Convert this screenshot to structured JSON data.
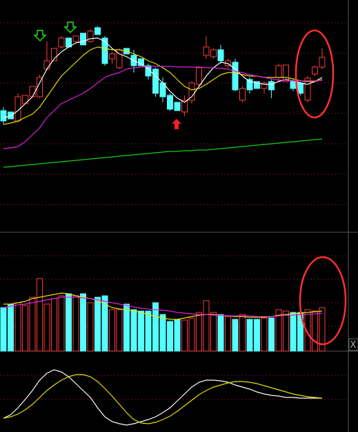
{
  "chart_data": [
    {
      "type": "candlestick",
      "ylim": [
        0,
        335
      ],
      "up_color": "#ff3b3b",
      "down_color": "#54ffff",
      "open": [
        175,
        173,
        160,
        185,
        195,
        195,
        235,
        247,
        267,
        280,
        275,
        287,
        275,
        295,
        280,
        250,
        237,
        265,
        255,
        250,
        240,
        235,
        215,
        197,
        187,
        173,
        190,
        213,
        255,
        253,
        263,
        240,
        245,
        190,
        220,
        217,
        207,
        217,
        223,
        217,
        217,
        215,
        190,
        228,
        238
      ],
      "high": [
        180,
        173,
        200,
        197,
        210,
        227,
        275,
        265,
        283,
        280,
        283,
        287,
        293,
        297,
        283,
        260,
        265,
        265,
        263,
        250,
        243,
        237,
        223,
        200,
        187,
        197,
        217,
        239,
        283,
        265,
        270,
        250,
        250,
        210,
        223,
        217,
        217,
        220,
        243,
        241,
        220,
        217,
        225,
        240,
        265
      ],
      "low": [
        155,
        163,
        157,
        185,
        195,
        193,
        233,
        247,
        265,
        267,
        275,
        270,
        273,
        285,
        240,
        243,
        235,
        257,
        230,
        240,
        220,
        195,
        187,
        175,
        175,
        167,
        185,
        210,
        250,
        250,
        243,
        237,
        203,
        187,
        200,
        207,
        200,
        193,
        217,
        217,
        203,
        197,
        187,
        225,
        235
      ],
      "close": [
        160,
        163,
        195,
        197,
        210,
        223,
        247,
        265,
        280,
        267,
        283,
        270,
        290,
        285,
        243,
        257,
        263,
        257,
        240,
        240,
        225,
        200,
        195,
        177,
        175,
        190,
        215,
        237,
        267,
        263,
        247,
        247,
        205,
        207,
        205,
        207,
        215,
        205,
        240,
        241,
        207,
        200,
        222,
        238,
        252
      ],
      "series": [
        {
          "color": "#ffffff",
          "values": [
            165,
            167,
            175,
            185,
            195,
            215,
            235,
            250,
            260,
            267,
            273,
            275,
            279,
            280,
            275,
            265,
            257,
            253,
            247,
            243,
            235,
            225,
            215,
            203,
            193,
            187,
            195,
            210,
            225,
            237,
            245,
            243,
            235,
            225,
            217,
            215,
            213,
            213,
            217,
            220,
            218,
            215,
            213,
            217,
            223
          ]
        },
        {
          "color": "#e8e000",
          "values": [
            155,
            157,
            160,
            165,
            170,
            180,
            195,
            210,
            225,
            235,
            245,
            255,
            263,
            267,
            265,
            263,
            263,
            261,
            257,
            253,
            247,
            243,
            237,
            230,
            220,
            210,
            205,
            207,
            213,
            220,
            227,
            230,
            230,
            227,
            225,
            225,
            223,
            223,
            223,
            223,
            221,
            218,
            217,
            217,
            220
          ]
        },
        {
          "color": "#e020e0",
          "values": [
            120,
            121,
            123,
            130,
            140,
            150,
            165,
            175,
            185,
            190,
            195,
            200,
            207,
            215,
            223,
            227,
            230,
            235,
            237,
            238,
            239,
            239,
            239,
            239,
            238,
            238,
            238,
            238,
            237,
            237,
            236,
            235,
            232,
            230,
            227,
            225,
            223,
            221,
            219,
            219,
            218,
            218,
            218,
            218,
            219
          ]
        },
        {
          "color": "#10d010",
          "values": [
            93,
            94,
            95,
            96,
            97,
            98,
            99,
            100,
            101,
            102,
            103,
            104,
            105,
            106,
            107,
            108,
            109,
            110,
            111,
            112,
            113,
            114,
            115,
            116,
            116,
            117,
            117,
            118,
            118,
            119,
            120,
            121,
            122,
            123,
            124,
            125,
            126,
            127,
            128,
            129,
            130,
            131,
            132,
            133,
            134
          ]
        }
      ]
    },
    {
      "type": "bar",
      "ylim": [
        0,
        168
      ],
      "values": [
        63,
        68,
        70,
        66,
        78,
        105,
        68,
        76,
        80,
        83,
        80,
        83,
        70,
        78,
        80,
        60,
        60,
        68,
        60,
        58,
        58,
        70,
        53,
        43,
        46,
        45,
        48,
        56,
        73,
        56,
        53,
        50,
        46,
        53,
        46,
        46,
        48,
        48,
        60,
        58,
        56,
        56,
        60,
        58,
        63
      ],
      "colors": [
        "#54ffff",
        "#54ffff",
        "#ff3b3b",
        "#ff3b3b",
        "#ff3b3b",
        "#ff3b3b",
        "#ff3b3b",
        "#ff3b3b",
        "#ff3b3b",
        "#54ffff",
        "#ff3b3b",
        "#54ffff",
        "#ff3b3b",
        "#54ffff",
        "#54ffff",
        "#ff3b3b",
        "#ff3b3b",
        "#54ffff",
        "#54ffff",
        "#54ffff",
        "#54ffff",
        "#54ffff",
        "#54ffff",
        "#54ffff",
        "#54ffff",
        "#ff3b3b",
        "#ff3b3b",
        "#ff3b3b",
        "#ff3b3b",
        "#ff3b3b",
        "#54ffff",
        "#ff3b3b",
        "#54ffff",
        "#ff3b3b",
        "#54ffff",
        "#54ffff",
        "#ff3b3b",
        "#54ffff",
        "#ff3b3b",
        "#ff3b3b",
        "#54ffff",
        "#54ffff",
        "#ff3b3b",
        "#ff3b3b",
        "#ff3b3b"
      ],
      "series": [
        {
          "color": "#e8e000",
          "values": [
            68,
            68,
            70,
            72,
            76,
            78,
            80,
            82,
            84,
            83,
            80,
            78,
            76,
            73,
            68,
            63,
            61,
            60,
            58,
            56,
            53,
            50,
            48,
            46,
            46,
            48,
            50,
            52,
            53,
            53,
            52,
            51,
            50,
            50,
            49,
            49,
            49,
            50,
            52,
            53,
            54,
            55,
            56,
            57,
            58
          ]
        },
        {
          "color": "#e020e0",
          "values": [
            63,
            65,
            67,
            68,
            70,
            72,
            74,
            76,
            78,
            78,
            78,
            77,
            76,
            74,
            72,
            70,
            68,
            66,
            64,
            62,
            61,
            60,
            59,
            58,
            56,
            55,
            54,
            53,
            53,
            52,
            52,
            51,
            51,
            51,
            51,
            50,
            50,
            50,
            51,
            52,
            52,
            53,
            53,
            54,
            55
          ]
        }
      ]
    },
    {
      "type": "line",
      "ylim": [
        0,
        115
      ],
      "series": [
        {
          "color": "#ffffff",
          "values": [
            20,
            25,
            35,
            47,
            60,
            75,
            85,
            90,
            87,
            80,
            70,
            60,
            50,
            35,
            22,
            15,
            12,
            10,
            12,
            15,
            18,
            22,
            28,
            35,
            45,
            55,
            65,
            72,
            75,
            75,
            74,
            72,
            68,
            65,
            62,
            58,
            55,
            53,
            52,
            50,
            50,
            49,
            49,
            49,
            49
          ]
        },
        {
          "color": "#e8e000",
          "values": [
            20,
            22,
            26,
            32,
            40,
            50,
            60,
            68,
            75,
            80,
            83,
            83,
            80,
            73,
            63,
            52,
            40,
            28,
            18,
            13,
            12,
            14,
            18,
            23,
            30,
            38,
            46,
            54,
            60,
            65,
            68,
            71,
            73,
            73,
            72,
            70,
            67,
            64,
            61,
            58,
            55,
            53,
            51,
            50,
            49
          ]
        }
      ]
    }
  ],
  "close_button": "X"
}
